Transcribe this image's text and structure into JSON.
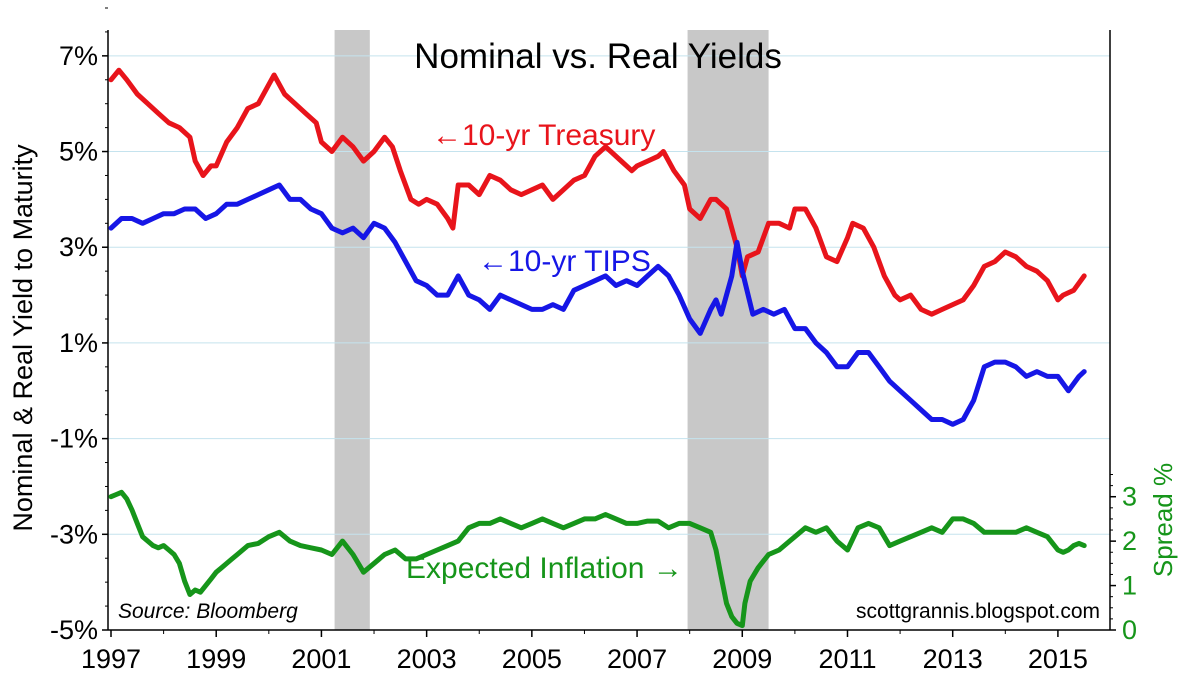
{
  "chart_data": {
    "type": "line",
    "title": "Nominal vs. Real Yields",
    "ylabel": "Nominal & Real Yield to Maturity",
    "y2label": "Spread %",
    "source": "Source: Bloomberg",
    "credit": "scottgrannis.blogspot.com",
    "xlim": [
      1997,
      2015.8
    ],
    "ylim": [
      -5,
      8
    ],
    "y2lim": [
      0,
      14
    ],
    "x_ticks": [
      1997,
      1999,
      2001,
      2003,
      2005,
      2007,
      2009,
      2011,
      2013,
      2015
    ],
    "x_tick_labels": [
      "1997",
      "1999",
      "2001",
      "2003",
      "2005",
      "2007",
      "2009",
      "2011",
      "2013",
      "2015"
    ],
    "y_ticks": [
      7,
      5,
      3,
      1,
      -1,
      -3,
      -5
    ],
    "y_tick_labels": [
      "7%",
      "5%",
      "3%",
      "1%",
      "-1%",
      "-3%",
      "-5%"
    ],
    "y2_ticks": [
      0,
      1,
      2,
      3
    ],
    "y2_tick_labels": [
      "0",
      "1",
      "2",
      "3"
    ],
    "grid": true,
    "recessions": [
      [
        2001.25,
        2001.92
      ],
      [
        2007.96,
        2009.5
      ]
    ],
    "annotations": [
      {
        "text": "←10-yr Treasury",
        "series": "treasury"
      },
      {
        "text": "←10-yr TIPS",
        "series": "tips"
      },
      {
        "text": "Expected Inflation →",
        "series": "inflation"
      }
    ],
    "series": [
      {
        "id": "treasury",
        "axis": "left",
        "color": "#e8141b",
        "x": [
          1997.0,
          1997.15,
          1997.3,
          1997.5,
          1997.7,
          1997.9,
          1998.1,
          1998.3,
          1998.5,
          1998.6,
          1998.75,
          1998.9,
          1999.0,
          1999.2,
          1999.4,
          1999.6,
          1999.8,
          2000.0,
          2000.1,
          2000.3,
          2000.5,
          2000.7,
          2000.9,
          2001.0,
          2001.2,
          2001.4,
          2001.6,
          2001.8,
          2002.0,
          2002.2,
          2002.35,
          2002.5,
          2002.7,
          2002.85,
          2003.0,
          2003.2,
          2003.4,
          2003.5,
          2003.6,
          2003.8,
          2004.0,
          2004.2,
          2004.4,
          2004.6,
          2004.8,
          2005.0,
          2005.2,
          2005.4,
          2005.6,
          2005.8,
          2006.0,
          2006.2,
          2006.4,
          2006.5,
          2006.7,
          2006.9,
          2007.0,
          2007.2,
          2007.4,
          2007.5,
          2007.7,
          2007.9,
          2008.0,
          2008.2,
          2008.4,
          2008.5,
          2008.7,
          2008.9,
          2009.0,
          2009.1,
          2009.3,
          2009.5,
          2009.7,
          2009.9,
          2010.0,
          2010.2,
          2010.4,
          2010.6,
          2010.8,
          2011.0,
          2011.1,
          2011.3,
          2011.5,
          2011.7,
          2011.9,
          2012.0,
          2012.2,
          2012.4,
          2012.6,
          2012.8,
          2013.0,
          2013.2,
          2013.4,
          2013.6,
          2013.8,
          2014.0,
          2014.2,
          2014.4,
          2014.6,
          2014.8,
          2015.0,
          2015.1,
          2015.3,
          2015.5
        ],
        "values": [
          6.5,
          6.7,
          6.5,
          6.2,
          6.0,
          5.8,
          5.6,
          5.5,
          5.3,
          4.8,
          4.5,
          4.7,
          4.7,
          5.2,
          5.5,
          5.9,
          6.0,
          6.4,
          6.6,
          6.2,
          6.0,
          5.8,
          5.6,
          5.2,
          5.0,
          5.3,
          5.1,
          4.8,
          5.0,
          5.3,
          5.1,
          4.6,
          4.0,
          3.9,
          4.0,
          3.9,
          3.6,
          3.4,
          4.3,
          4.3,
          4.1,
          4.5,
          4.4,
          4.2,
          4.1,
          4.2,
          4.3,
          4.0,
          4.2,
          4.4,
          4.5,
          4.9,
          5.1,
          5.0,
          4.8,
          4.6,
          4.7,
          4.8,
          4.9,
          5.0,
          4.6,
          4.3,
          3.8,
          3.6,
          4.0,
          4.0,
          3.8,
          3.0,
          2.4,
          2.8,
          2.9,
          3.5,
          3.5,
          3.4,
          3.8,
          3.8,
          3.4,
          2.8,
          2.7,
          3.2,
          3.5,
          3.4,
          3.0,
          2.4,
          2.0,
          1.9,
          2.0,
          1.7,
          1.6,
          1.7,
          1.8,
          1.9,
          2.2,
          2.6,
          2.7,
          2.9,
          2.8,
          2.6,
          2.5,
          2.3,
          1.9,
          2.0,
          2.1,
          2.4
        ]
      },
      {
        "id": "tips",
        "axis": "left",
        "color": "#1616e6",
        "x": [
          1997.0,
          1997.2,
          1997.4,
          1997.6,
          1997.8,
          1998.0,
          1998.2,
          1998.4,
          1998.6,
          1998.8,
          1999.0,
          1999.2,
          1999.4,
          1999.6,
          1999.8,
          2000.0,
          2000.2,
          2000.4,
          2000.6,
          2000.8,
          2001.0,
          2001.2,
          2001.4,
          2001.6,
          2001.8,
          2002.0,
          2002.2,
          2002.4,
          2002.6,
          2002.8,
          2003.0,
          2003.2,
          2003.4,
          2003.6,
          2003.8,
          2004.0,
          2004.2,
          2004.4,
          2004.6,
          2004.8,
          2005.0,
          2005.2,
          2005.4,
          2005.6,
          2005.8,
          2006.0,
          2006.2,
          2006.4,
          2006.6,
          2006.8,
          2007.0,
          2007.2,
          2007.4,
          2007.6,
          2007.8,
          2008.0,
          2008.2,
          2008.4,
          2008.5,
          2008.6,
          2008.8,
          2008.9,
          2009.0,
          2009.2,
          2009.4,
          2009.6,
          2009.8,
          2010.0,
          2010.2,
          2010.4,
          2010.6,
          2010.8,
          2011.0,
          2011.2,
          2011.4,
          2011.6,
          2011.8,
          2012.0,
          2012.2,
          2012.4,
          2012.6,
          2012.8,
          2013.0,
          2013.2,
          2013.4,
          2013.6,
          2013.8,
          2014.0,
          2014.2,
          2014.4,
          2014.6,
          2014.8,
          2015.0,
          2015.2,
          2015.4,
          2015.5
        ],
        "values": [
          3.4,
          3.6,
          3.6,
          3.5,
          3.6,
          3.7,
          3.7,
          3.8,
          3.8,
          3.6,
          3.7,
          3.9,
          3.9,
          4.0,
          4.1,
          4.2,
          4.3,
          4.0,
          4.0,
          3.8,
          3.7,
          3.4,
          3.3,
          3.4,
          3.2,
          3.5,
          3.4,
          3.1,
          2.7,
          2.3,
          2.2,
          2.0,
          2.0,
          2.4,
          2.0,
          1.9,
          1.7,
          2.0,
          1.9,
          1.8,
          1.7,
          1.7,
          1.8,
          1.7,
          2.1,
          2.2,
          2.3,
          2.4,
          2.2,
          2.3,
          2.2,
          2.4,
          2.6,
          2.4,
          2.0,
          1.5,
          1.2,
          1.7,
          1.9,
          1.6,
          2.4,
          3.1,
          2.5,
          1.6,
          1.7,
          1.6,
          1.7,
          1.3,
          1.3,
          1.0,
          0.8,
          0.5,
          0.5,
          0.8,
          0.8,
          0.5,
          0.2,
          0.0,
          -0.2,
          -0.4,
          -0.6,
          -0.6,
          -0.7,
          -0.6,
          -0.2,
          0.5,
          0.6,
          0.6,
          0.5,
          0.3,
          0.4,
          0.3,
          0.3,
          0.0,
          0.3,
          0.4
        ]
      },
      {
        "id": "inflation",
        "axis": "right",
        "color": "#16951a",
        "x": [
          1997.0,
          1997.1,
          1997.2,
          1997.3,
          1997.4,
          1997.5,
          1997.6,
          1997.7,
          1997.8,
          1997.9,
          1998.0,
          1998.1,
          1998.2,
          1998.3,
          1998.4,
          1998.5,
          1998.6,
          1998.7,
          1998.8,
          1998.9,
          1999.0,
          1999.1,
          1999.2,
          1999.3,
          1999.4,
          1999.6,
          1999.8,
          2000.0,
          2000.2,
          2000.4,
          2000.6,
          2000.8,
          2001.0,
          2001.2,
          2001.4,
          2001.6,
          2001.8,
          2002.0,
          2002.2,
          2002.4,
          2002.6,
          2002.8,
          2003.0,
          2003.2,
          2003.4,
          2003.6,
          2003.8,
          2004.0,
          2004.2,
          2004.4,
          2004.6,
          2004.8,
          2005.0,
          2005.2,
          2005.4,
          2005.6,
          2005.8,
          2006.0,
          2006.2,
          2006.4,
          2006.6,
          2006.8,
          2007.0,
          2007.2,
          2007.4,
          2007.6,
          2007.8,
          2008.0,
          2008.2,
          2008.4,
          2008.5,
          2008.6,
          2008.7,
          2008.8,
          2008.9,
          2009.0,
          2009.05,
          2009.15,
          2009.3,
          2009.5,
          2009.7,
          2009.9,
          2010.0,
          2010.2,
          2010.4,
          2010.6,
          2010.8,
          2011.0,
          2011.2,
          2011.4,
          2011.6,
          2011.8,
          2012.0,
          2012.2,
          2012.4,
          2012.6,
          2012.8,
          2013.0,
          2013.2,
          2013.4,
          2013.6,
          2013.8,
          2014.0,
          2014.2,
          2014.4,
          2014.6,
          2014.8,
          2015.0,
          2015.1,
          2015.2,
          2015.3,
          2015.4,
          2015.5
        ],
        "values": [
          3.0,
          3.05,
          3.1,
          2.95,
          2.7,
          2.4,
          2.1,
          2.0,
          1.9,
          1.85,
          1.9,
          1.8,
          1.7,
          1.5,
          1.1,
          0.8,
          0.9,
          0.85,
          1.0,
          1.15,
          1.3,
          1.4,
          1.5,
          1.6,
          1.7,
          1.9,
          1.95,
          2.1,
          2.2,
          2.0,
          1.9,
          1.85,
          1.8,
          1.7,
          2.0,
          1.7,
          1.3,
          1.5,
          1.7,
          1.8,
          1.6,
          1.6,
          1.7,
          1.8,
          1.9,
          2.0,
          2.3,
          2.4,
          2.4,
          2.5,
          2.4,
          2.3,
          2.4,
          2.5,
          2.4,
          2.3,
          2.4,
          2.5,
          2.5,
          2.6,
          2.5,
          2.4,
          2.4,
          2.45,
          2.45,
          2.3,
          2.4,
          2.4,
          2.3,
          2.2,
          1.8,
          1.2,
          0.6,
          0.3,
          0.15,
          0.1,
          0.6,
          1.1,
          1.4,
          1.7,
          1.8,
          2.0,
          2.1,
          2.3,
          2.2,
          2.3,
          2.0,
          1.8,
          2.3,
          2.4,
          2.3,
          1.9,
          2.0,
          2.1,
          2.2,
          2.3,
          2.2,
          2.5,
          2.5,
          2.4,
          2.2,
          2.2,
          2.2,
          2.2,
          2.3,
          2.2,
          2.1,
          1.8,
          1.75,
          1.8,
          1.9,
          1.95,
          1.9
        ]
      }
    ]
  }
}
